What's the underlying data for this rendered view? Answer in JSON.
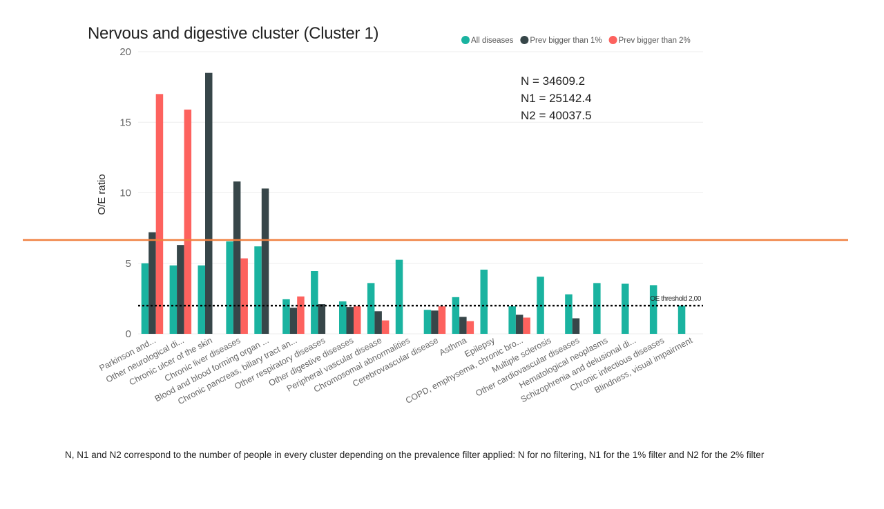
{
  "chart_data": {
    "type": "bar",
    "title": "Nervous and digestive cluster (Cluster 1)",
    "ylabel": "O/E ratio",
    "xlabel": "",
    "ylim": [
      0,
      20
    ],
    "yticks": [
      0,
      5,
      10,
      15,
      20
    ],
    "grid": true,
    "legend_placement": "top-right",
    "categories": [
      "Parkinson and...",
      "Other neurological di...",
      "Chronic ulcer of the skin",
      "Chronic liver diseases",
      "Blood and blood forming organ ...",
      "Chronic pancreas, biliary tract an...",
      "Other respiratory diseases",
      "Other digestive diseases",
      "Peripheral vascular disease",
      "Chromosomal abnormalities",
      "Cerebrovascular disease",
      "Asthma",
      "Epilepsy",
      "COPD, emphysema, chronic bro...",
      "Multiple sclerosis",
      "Other cardiovascular diseases",
      "Hematological neoplasms",
      "Schizophrenia and delusional di...",
      "Chronic infectious diseases",
      "Blindness, visual impairment"
    ],
    "series": [
      {
        "name": "All diseases",
        "color": "#1AB3A0",
        "values": [
          5.0,
          4.85,
          4.85,
          6.55,
          6.2,
          2.45,
          4.45,
          2.3,
          3.6,
          5.25,
          1.7,
          2.6,
          4.55,
          1.95,
          4.05,
          2.8,
          3.6,
          3.55,
          3.45,
          2.0
        ]
      },
      {
        "name": "Prev bigger than 1%",
        "color": "#374649",
        "values": [
          7.2,
          6.3,
          18.5,
          10.8,
          10.3,
          1.85,
          2.1,
          1.9,
          1.6,
          null,
          1.65,
          1.2,
          null,
          1.35,
          null,
          1.1,
          null,
          null,
          null,
          null
        ]
      },
      {
        "name": "Prev bigger than 2%",
        "color": "#FD625E",
        "values": [
          17.0,
          15.9,
          null,
          5.35,
          null,
          2.65,
          null,
          1.95,
          0.95,
          null,
          1.95,
          0.9,
          null,
          1.15,
          null,
          null,
          null,
          null,
          null,
          null
        ]
      }
    ],
    "annotations": [
      "N = 34609.2",
      "N1 = 25142.4",
      "N2 = 40037.5"
    ],
    "threshold": {
      "value": 2.0,
      "label": "OE threshold 2,00",
      "color": "#000000",
      "style": "dotted"
    },
    "overlay_line_color": "#F08040"
  },
  "footnote": "N, N1 and N2 correspond to the number of people in every cluster depending on the prevalence filter applied: N for no filtering, N1 for the 1% filter and N2 for the 2% filter"
}
